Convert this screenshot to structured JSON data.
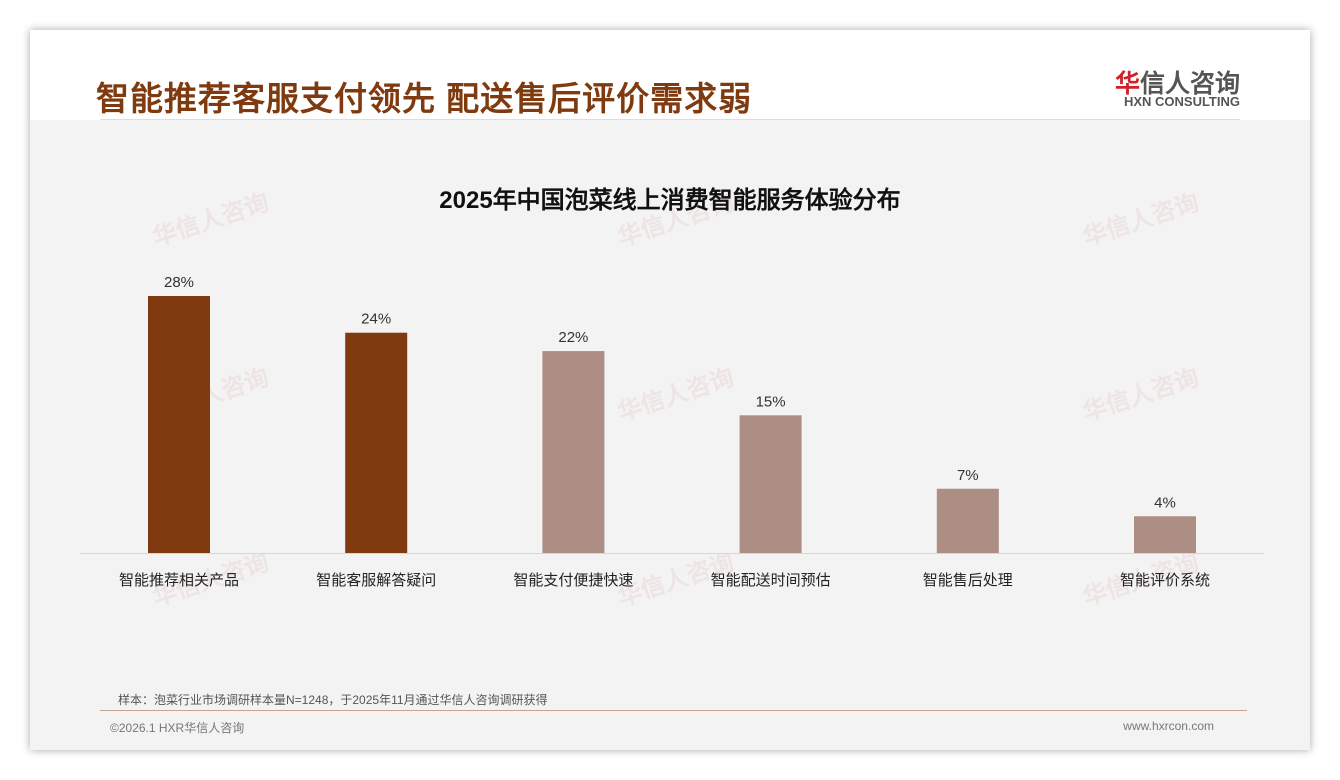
{
  "header": {
    "title": "智能推荐客服支付领先 配送售后评价需求弱",
    "logo_cn_red": "华",
    "logo_cn": "信人咨询",
    "logo_en": "HXN CONSULTING"
  },
  "watermark": "华信人咨询",
  "chart_data": {
    "type": "bar",
    "title": "2025年中国泡菜线上消费智能服务体验分布",
    "categories": [
      "智能推荐相关产品",
      "智能客服解答疑问",
      "智能支付便捷快速",
      "智能配送时间预估",
      "智能售后处理",
      "智能评价系统"
    ],
    "values": [
      28,
      24,
      22,
      15,
      7,
      4
    ],
    "labels": [
      "28%",
      "24%",
      "22%",
      "15%",
      "7%",
      "4%"
    ],
    "unit": "%",
    "ylim": [
      0,
      30
    ],
    "colors": [
      "#7f3b0f",
      "#7f3b0f",
      "#ac8e84",
      "#ac8e84",
      "#ac8e84",
      "#ac8e84"
    ],
    "grid": false
  },
  "footer": {
    "note": "样本：泡菜行业市场调研样本量N=1248，于2025年11月通过华信人咨询调研获得",
    "copyright": "©2026.1 HXR华信人咨询",
    "url": "www.hxrcon.com"
  }
}
